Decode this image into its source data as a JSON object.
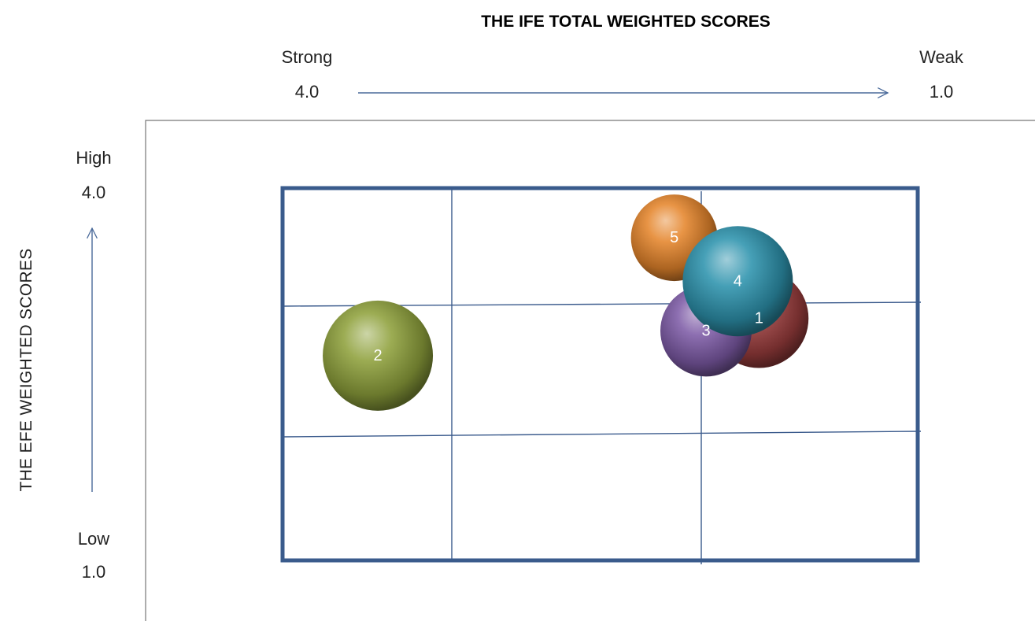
{
  "chart_data": {
    "type": "bubble",
    "title": "THE IFE TOTAL WEIGHTED SCORES",
    "xlabel": "THE IFE TOTAL WEIGHTED SCORES",
    "ylabel": "THE EFE WEIGHTED SCORES",
    "x_axis": {
      "left_label": "Strong",
      "left_value": "4.0",
      "right_label": "Weak",
      "right_value": "1.0",
      "range": [
        4.0,
        1.0
      ],
      "reversed": true
    },
    "y_axis": {
      "top_label": "High",
      "top_value": "4.0",
      "bottom_label": "Low",
      "bottom_value": "1.0",
      "range": [
        1.0,
        4.0
      ]
    },
    "grid": "3x3",
    "points": [
      {
        "label": "1",
        "x": 1.75,
        "y": 2.95,
        "color": "#9b3d3d"
      },
      {
        "label": "2",
        "x": 3.55,
        "y": 2.65,
        "color": "#8ea13c"
      },
      {
        "label": "3",
        "x": 2.0,
        "y": 2.85,
        "color": "#7d5ba6"
      },
      {
        "label": "4",
        "x": 1.85,
        "y": 3.25,
        "color": "#2d93ad"
      },
      {
        "label": "5",
        "x": 2.15,
        "y": 3.6,
        "color": "#e5852c"
      }
    ]
  }
}
